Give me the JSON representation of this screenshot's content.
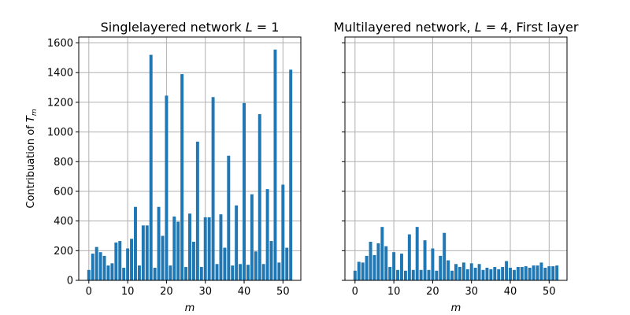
{
  "colors": {
    "bar": "#1f77b4",
    "grid": "#b0b0b0",
    "axes": "#000000"
  },
  "chart_data": [
    {
      "type": "bar",
      "title": "Singlelayered network L = 1",
      "title_parts": {
        "text": "Singlelayered network ",
        "var": "L",
        "rest": " = 1"
      },
      "xlabel": "m",
      "ylabel": "Contribuation of T_m",
      "ylabel_parts": {
        "text": "Contribuation of ",
        "var": "T",
        "sub": "m"
      },
      "xlim": [
        -2.6,
        54.6
      ],
      "ylim": [
        0,
        1640
      ],
      "xticks": [
        0,
        10,
        20,
        30,
        40,
        50
      ],
      "yticks": [
        0,
        200,
        400,
        600,
        800,
        1000,
        1200,
        1400,
        1600
      ],
      "grid": true,
      "x": [
        0,
        1,
        2,
        3,
        4,
        5,
        6,
        7,
        8,
        9,
        10,
        11,
        12,
        13,
        14,
        15,
        16,
        17,
        18,
        19,
        20,
        21,
        22,
        23,
        24,
        25,
        26,
        27,
        28,
        29,
        30,
        31,
        32,
        33,
        34,
        35,
        36,
        37,
        38,
        39,
        40,
        41,
        42,
        43,
        44,
        45,
        46,
        47,
        48,
        49,
        50,
        51,
        52
      ],
      "values": [
        70,
        180,
        225,
        190,
        165,
        100,
        115,
        255,
        265,
        85,
        215,
        280,
        495,
        100,
        370,
        370,
        1520,
        85,
        495,
        300,
        1245,
        100,
        430,
        395,
        1390,
        90,
        450,
        260,
        935,
        90,
        425,
        425,
        1235,
        110,
        445,
        220,
        840,
        100,
        505,
        110,
        1195,
        105,
        580,
        195,
        1120,
        110,
        615,
        265,
        1555,
        120,
        645,
        220,
        1420
      ]
    },
    {
      "type": "bar",
      "title": "Multilayered network, L = 4, First layer",
      "title_parts": {
        "text": "Multilayered network, ",
        "var": "L",
        "rest": " = 4, First layer"
      },
      "xlabel": "m",
      "ylabel": "",
      "xlim": [
        -2.6,
        54.6
      ],
      "ylim": [
        0,
        1640
      ],
      "xticks": [
        0,
        10,
        20,
        30,
        40,
        50
      ],
      "yticks": [
        0,
        200,
        400,
        600,
        800,
        1000,
        1200,
        1400,
        1600
      ],
      "grid": true,
      "x": [
        0,
        1,
        2,
        3,
        4,
        5,
        6,
        7,
        8,
        9,
        10,
        11,
        12,
        13,
        14,
        15,
        16,
        17,
        18,
        19,
        20,
        21,
        22,
        23,
        24,
        25,
        26,
        27,
        28,
        29,
        30,
        31,
        32,
        33,
        34,
        35,
        36,
        37,
        38,
        39,
        40,
        41,
        42,
        43,
        44,
        45,
        46,
        47,
        48,
        49,
        50,
        51,
        52
      ],
      "values": [
        65,
        125,
        120,
        165,
        260,
        170,
        250,
        360,
        230,
        90,
        190,
        70,
        180,
        65,
        310,
        70,
        360,
        70,
        270,
        70,
        215,
        65,
        165,
        320,
        135,
        65,
        110,
        90,
        120,
        75,
        115,
        85,
        110,
        70,
        85,
        75,
        90,
        75,
        90,
        130,
        85,
        70,
        90,
        90,
        95,
        85,
        100,
        100,
        120,
        85,
        95,
        95,
        100
      ]
    }
  ]
}
